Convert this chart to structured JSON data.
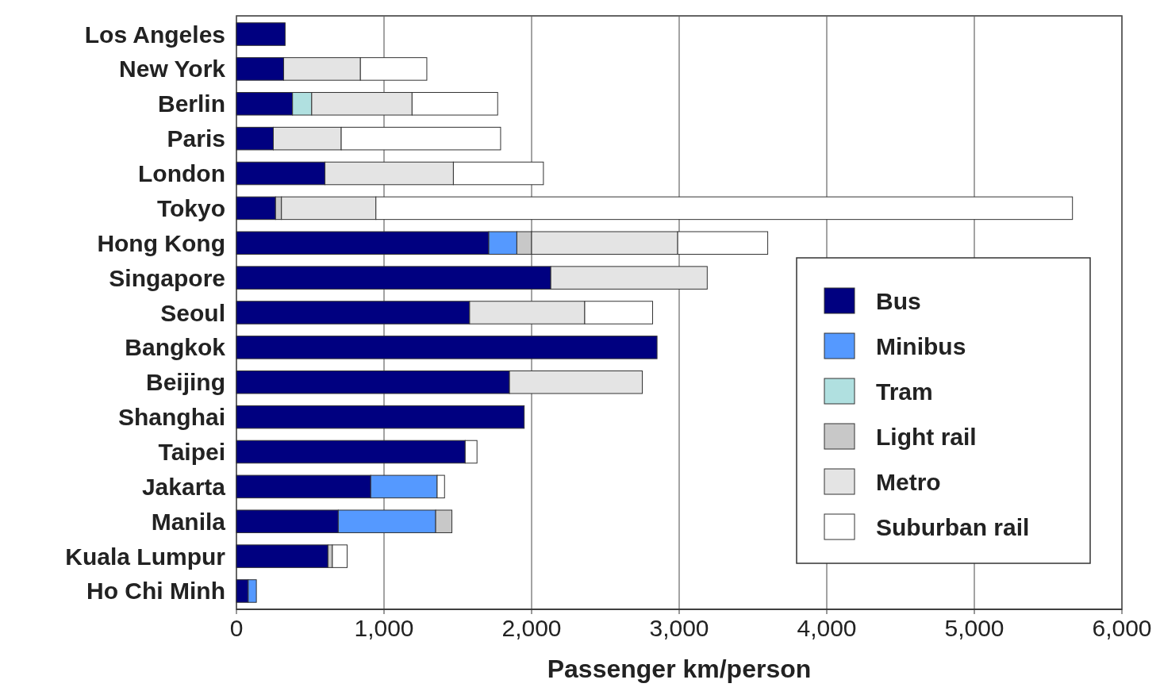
{
  "chart_data": {
    "type": "bar",
    "orientation": "horizontal",
    "stacked": true,
    "categories": [
      "Los Angeles",
      "New York",
      "Berlin",
      "Paris",
      "London",
      "Tokyo",
      "Hong Kong",
      "Singapore",
      "Seoul",
      "Bangkok",
      "Beijing",
      "Shanghai",
      "Taipei",
      "Jakarta",
      "Manila",
      "Kuala Lumpur",
      "Ho Chi Minh"
    ],
    "series": [
      {
        "name": "Bus",
        "color": "#000080",
        "values": [
          330,
          320,
          380,
          250,
          600,
          265,
          1710,
          2130,
          1580,
          2850,
          1850,
          1950,
          1550,
          910,
          690,
          620,
          80
        ]
      },
      {
        "name": "Minibus",
        "color": "#5599ff",
        "values": [
          null,
          null,
          null,
          null,
          null,
          null,
          190,
          null,
          null,
          null,
          null,
          null,
          null,
          450,
          660,
          null,
          55
        ]
      },
      {
        "name": "Tram",
        "color": "#b0e0e0",
        "values": [
          null,
          null,
          130,
          null,
          null,
          null,
          null,
          null,
          null,
          null,
          null,
          null,
          null,
          null,
          null,
          null,
          null
        ]
      },
      {
        "name": "Light rail",
        "color": "#c8c8c8",
        "values": [
          null,
          null,
          null,
          null,
          null,
          40,
          100,
          null,
          null,
          null,
          null,
          null,
          null,
          null,
          110,
          30,
          null
        ]
      },
      {
        "name": "Metro",
        "color": "#e4e4e4",
        "values": [
          null,
          520,
          680,
          460,
          870,
          640,
          990,
          1060,
          780,
          null,
          900,
          null,
          null,
          null,
          null,
          null,
          null
        ]
      },
      {
        "name": "Suburban rail",
        "color": "#ffffff",
        "values": [
          null,
          450,
          580,
          1080,
          610,
          4720,
          610,
          null,
          460,
          null,
          null,
          null,
          80,
          50,
          null,
          100,
          null
        ]
      }
    ],
    "xlim": [
      0,
      6000
    ],
    "xticks": [
      0,
      {
        "value": 1000,
        "label": "1,000"
      },
      {
        "value": 2000,
        "label": "2,000"
      },
      {
        "value": 3000,
        "label": "3,000"
      },
      {
        "value": 4000,
        "label": "4,000"
      },
      {
        "value": 5000,
        "label": "5,000"
      },
      {
        "value": 6000,
        "label": "6,000"
      }
    ],
    "xlabel": "Passenger km/person",
    "grid": "x",
    "legend": "right"
  }
}
